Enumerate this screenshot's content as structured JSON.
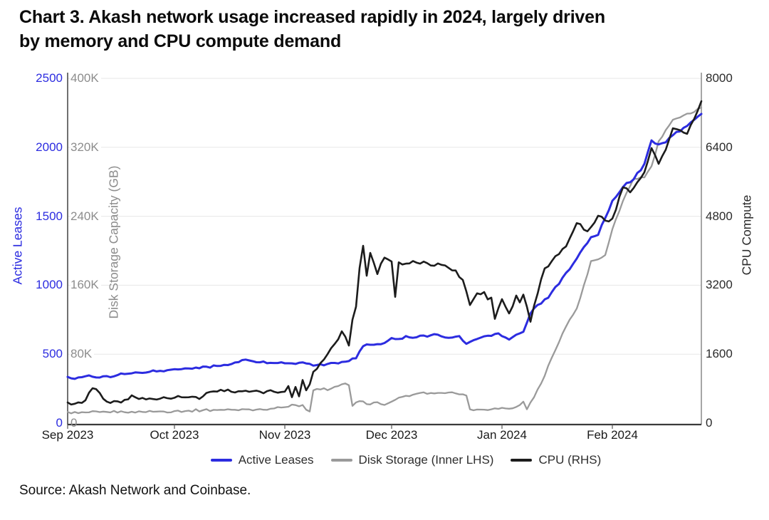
{
  "page": {
    "title_line1": "Chart 3. Akash network usage increased rapidly in 2024, largely driven",
    "title_line2": "by memory and CPU compute demand",
    "source": "Source: Akash Network and Coinbase."
  },
  "chart_data": {
    "type": "line",
    "title": "Chart 3. Akash network usage increased rapidly in 2024, largely driven by memory and CPU compute demand",
    "grid_color": "#e7e7e7",
    "axis_line_colors": {
      "left": "#4d4d4d",
      "right": "#8f8f8f",
      "bottom": "#3a3a3a",
      "tick": "#555555"
    },
    "x_axis": {
      "tick_labels": [
        "Sep 2023",
        "Oct 2023",
        "Nov 2023",
        "Dec 2023",
        "Jan 2024",
        "Feb 2024"
      ],
      "tick_day_offsets": [
        0,
        30,
        61,
        91,
        122,
        153
      ],
      "range_days": [
        0,
        178
      ]
    },
    "axes": {
      "left": {
        "title": "Active Leases",
        "color": "#2c2ce0",
        "tick_labels": [
          "0",
          "500",
          "1000",
          "1500",
          "2000",
          "2500"
        ],
        "tick_values": [
          0,
          500,
          1000,
          1500,
          2000,
          2500
        ],
        "range": [
          0,
          2500
        ]
      },
      "inner_left": {
        "title": "Disk Storage Capacity (GB)",
        "color": "#8c8c8c",
        "tick_labels": [
          "0",
          "80K",
          "160K",
          "240K",
          "320K",
          "400K"
        ],
        "tick_values": [
          0,
          80000,
          160000,
          240000,
          320000,
          400000
        ],
        "range": [
          0,
          400000
        ]
      },
      "right": {
        "title": "CPU Compute",
        "color": "#2b2b2b",
        "tick_labels": [
          "0",
          "1600",
          "3200",
          "4800",
          "6400",
          "8000"
        ],
        "tick_values": [
          0,
          1600,
          3200,
          4800,
          6400,
          8000
        ],
        "range": [
          0,
          8000
        ]
      }
    },
    "legend": [
      {
        "label": "Active Leases",
        "color": "#2c2ce0"
      },
      {
        "label": "Disk Storage (Inner LHS)",
        "color": "#9a9a9a"
      },
      {
        "label": "CPU (RHS)",
        "color": "#1c1c1c"
      }
    ],
    "series": [
      {
        "name": "Active Leases",
        "axis": "left",
        "color": "#2c2ce0",
        "width": 3,
        "points": [
          [
            0,
            335
          ],
          [
            2,
            321
          ],
          [
            4,
            333
          ],
          [
            6,
            346
          ],
          [
            8,
            331
          ],
          [
            10,
            340
          ],
          [
            12,
            333
          ],
          [
            14,
            348
          ],
          [
            16,
            356
          ],
          [
            18,
            361
          ],
          [
            20,
            366
          ],
          [
            23,
            372
          ],
          [
            26,
            379
          ],
          [
            30,
            391
          ],
          [
            33,
            397
          ],
          [
            36,
            403
          ],
          [
            39,
            409
          ],
          [
            42,
            414
          ],
          [
            45,
            421
          ],
          [
            48,
            442
          ],
          [
            50,
            461
          ],
          [
            52,
            449
          ],
          [
            54,
            441
          ],
          [
            57,
            437
          ],
          [
            61,
            434
          ],
          [
            64,
            429
          ],
          [
            67,
            433
          ],
          [
            70,
            421
          ],
          [
            73,
            429
          ],
          [
            76,
            433
          ],
          [
            79,
            450
          ],
          [
            81,
            470
          ],
          [
            82,
            520
          ],
          [
            83,
            558
          ],
          [
            85,
            568
          ],
          [
            87,
            573
          ],
          [
            89,
            581
          ],
          [
            91,
            617
          ],
          [
            93,
            610
          ],
          [
            95,
            631
          ],
          [
            97,
            619
          ],
          [
            99,
            634
          ],
          [
            101,
            627
          ],
          [
            103,
            645
          ],
          [
            105,
            629
          ],
          [
            107,
            619
          ],
          [
            109,
            627
          ],
          [
            110,
            631
          ],
          [
            112,
            575
          ],
          [
            114,
            601
          ],
          [
            116,
            620
          ],
          [
            118,
            634
          ],
          [
            120,
            646
          ],
          [
            121,
            651
          ],
          [
            124,
            606
          ],
          [
            126,
            641
          ],
          [
            128,
            662
          ],
          [
            130,
            795
          ],
          [
            131,
            832
          ],
          [
            135,
            909
          ],
          [
            139,
            1054
          ],
          [
            143,
            1193
          ],
          [
            147,
            1348
          ],
          [
            149,
            1365
          ],
          [
            153,
            1612
          ],
          [
            157,
            1741
          ],
          [
            159,
            1768
          ],
          [
            162,
            1880
          ],
          [
            164,
            2050
          ],
          [
            166,
            2021
          ],
          [
            168,
            2036
          ],
          [
            170,
            2088
          ],
          [
            174,
            2155
          ],
          [
            176,
            2200
          ],
          [
            178,
            2242
          ]
        ]
      },
      {
        "name": "Disk Storage (Inner LHS)",
        "axis": "inner_left",
        "color": "#9a9a9a",
        "width": 2.3,
        "points": [
          [
            0,
            13000
          ],
          [
            3,
            11600
          ],
          [
            6,
            12500
          ],
          [
            9,
            12800
          ],
          [
            12,
            12400
          ],
          [
            15,
            13800
          ],
          [
            18,
            13200
          ],
          [
            21,
            13000
          ],
          [
            24,
            13200
          ],
          [
            27,
            13500
          ],
          [
            30,
            14000
          ],
          [
            34,
            14500
          ],
          [
            38,
            15000
          ],
          [
            42,
            15200
          ],
          [
            46,
            15500
          ],
          [
            50,
            16000
          ],
          [
            54,
            16300
          ],
          [
            58,
            17000
          ],
          [
            61,
            18500
          ],
          [
            63,
            21500
          ],
          [
            65,
            19500
          ],
          [
            66,
            21000
          ],
          [
            67,
            15500
          ],
          [
            68,
            13500
          ],
          [
            69,
            38000
          ],
          [
            71,
            39000
          ],
          [
            74,
            40000
          ],
          [
            76,
            43000
          ],
          [
            78,
            46000
          ],
          [
            79,
            44000
          ],
          [
            80,
            20000
          ],
          [
            82,
            25500
          ],
          [
            84,
            22000
          ],
          [
            86,
            24000
          ],
          [
            88,
            22000
          ],
          [
            90,
            23000
          ],
          [
            92,
            27000
          ],
          [
            94,
            30500
          ],
          [
            97,
            33000
          ],
          [
            99,
            35000
          ],
          [
            101,
            34000
          ],
          [
            103,
            34500
          ],
          [
            105,
            35000
          ],
          [
            107,
            35500
          ],
          [
            109,
            34500
          ],
          [
            111,
            33500
          ],
          [
            112,
            32000
          ],
          [
            113,
            16000
          ],
          [
            115,
            15800
          ],
          [
            117,
            15600
          ],
          [
            119,
            16000
          ],
          [
            121,
            16500
          ],
          [
            123,
            17000
          ],
          [
            125,
            17200
          ],
          [
            127,
            21000
          ],
          [
            128,
            25000
          ],
          [
            129,
            16000
          ],
          [
            131,
            30000
          ],
          [
            132,
            39000
          ],
          [
            134,
            55000
          ],
          [
            136,
            76000
          ],
          [
            139,
            104000
          ],
          [
            141,
            120000
          ],
          [
            143,
            133000
          ],
          [
            145,
            160000
          ],
          [
            147,
            188000
          ],
          [
            149,
            190000
          ],
          [
            151,
            195000
          ],
          [
            153,
            225000
          ],
          [
            156,
            258000
          ],
          [
            159,
            284000
          ],
          [
            162,
            285000
          ],
          [
            164,
            298000
          ],
          [
            166,
            327000
          ],
          [
            168,
            340000
          ],
          [
            170,
            352000
          ],
          [
            173,
            357000
          ],
          [
            176,
            361000
          ],
          [
            178,
            366000
          ]
        ]
      },
      {
        "name": "CPU (RHS)",
        "axis": "right",
        "color": "#1c1c1c",
        "width": 2.6,
        "points": [
          [
            0,
            480
          ],
          [
            1,
            432
          ],
          [
            2,
            450
          ],
          [
            4,
            470
          ],
          [
            5,
            530
          ],
          [
            6,
            705
          ],
          [
            7,
            810
          ],
          [
            8,
            788
          ],
          [
            9,
            700
          ],
          [
            10,
            565
          ],
          [
            11,
            500
          ],
          [
            12,
            468
          ],
          [
            14,
            505
          ],
          [
            16,
            540
          ],
          [
            18,
            645
          ],
          [
            19,
            600
          ],
          [
            20,
            560
          ],
          [
            22,
            550
          ],
          [
            24,
            558
          ],
          [
            26,
            568
          ],
          [
            28,
            578
          ],
          [
            30,
            588
          ],
          [
            33,
            598
          ],
          [
            36,
            606
          ],
          [
            37,
            560
          ],
          [
            38,
            620
          ],
          [
            39,
            700
          ],
          [
            40,
            726
          ],
          [
            42,
            733
          ],
          [
            44,
            741
          ],
          [
            46,
            728
          ],
          [
            48,
            741
          ],
          [
            50,
            752
          ],
          [
            52,
            742
          ],
          [
            54,
            731
          ],
          [
            56,
            742
          ],
          [
            58,
            728
          ],
          [
            60,
            722
          ],
          [
            61,
            731
          ],
          [
            62,
            860
          ],
          [
            63,
            601
          ],
          [
            64,
            840
          ],
          [
            65,
            622
          ],
          [
            66,
            1000
          ],
          [
            67,
            762
          ],
          [
            68,
            901
          ],
          [
            69,
            1190
          ],
          [
            71,
            1391
          ],
          [
            73,
            1600
          ],
          [
            75,
            1836
          ],
          [
            77,
            2131
          ],
          [
            79,
            1800
          ],
          [
            80,
            2400
          ],
          [
            81,
            2700
          ],
          [
            82,
            3600
          ],
          [
            83,
            4115
          ],
          [
            84,
            3420
          ],
          [
            85,
            3950
          ],
          [
            87,
            3460
          ],
          [
            88,
            3700
          ],
          [
            89,
            3840
          ],
          [
            91,
            3750
          ],
          [
            92,
            2930
          ],
          [
            93,
            3730
          ],
          [
            95,
            3700
          ],
          [
            97,
            3762
          ],
          [
            99,
            3700
          ],
          [
            101,
            3712
          ],
          [
            103,
            3652
          ],
          [
            105,
            3672
          ],
          [
            107,
            3601
          ],
          [
            109,
            3542
          ],
          [
            111,
            3322
          ],
          [
            113,
            2740
          ],
          [
            115,
            3011
          ],
          [
            117,
            3042
          ],
          [
            118,
            2871
          ],
          [
            119,
            2912
          ],
          [
            120,
            2420
          ],
          [
            122,
            2876
          ],
          [
            124,
            2546
          ],
          [
            126,
            2961
          ],
          [
            127,
            2801
          ],
          [
            128,
            2982
          ],
          [
            129,
            2701
          ],
          [
            130,
            2352
          ],
          [
            132,
            3001
          ],
          [
            134,
            3590
          ],
          [
            136,
            3760
          ],
          [
            138,
            3921
          ],
          [
            140,
            4100
          ],
          [
            143,
            4641
          ],
          [
            146,
            4452
          ],
          [
            149,
            4812
          ],
          [
            151,
            4701
          ],
          [
            153,
            4746
          ],
          [
            156,
            5471
          ],
          [
            158,
            5356
          ],
          [
            162,
            5821
          ],
          [
            164,
            6381
          ],
          [
            166,
            6016
          ],
          [
            168,
            6346
          ],
          [
            170,
            6841
          ],
          [
            174,
            6712
          ],
          [
            176,
            7061
          ],
          [
            178,
            7470
          ]
        ]
      }
    ]
  }
}
